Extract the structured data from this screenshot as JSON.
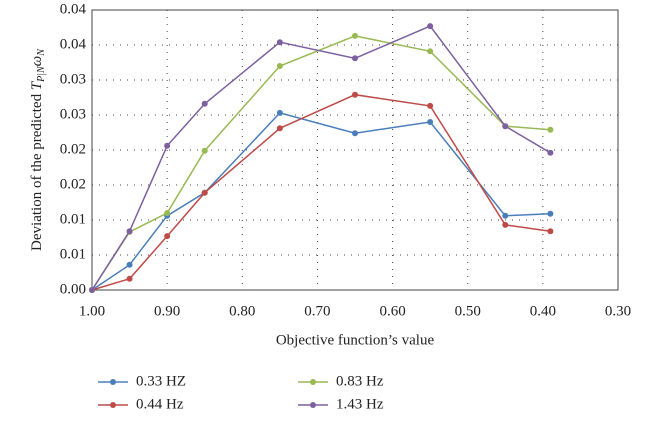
{
  "chart_data": {
    "type": "line",
    "x_label": "Objective function’s value",
    "y_label": "Deviation of the predicted",
    "y_label_symbol": [
      "T",
      "P|N",
      "ω",
      "N"
    ],
    "x": [
      1.0,
      0.95,
      0.9,
      0.85,
      0.75,
      0.65,
      0.55,
      0.45,
      0.39
    ],
    "series": [
      {
        "name": "0.33 HZ",
        "color": "#4a7ebb",
        "values": [
          0,
          0.0036,
          0.0106,
          0.0139,
          0.0253,
          0.0224,
          0.024,
          0.0106,
          0.0109
        ]
      },
      {
        "name": "0.44 Hz",
        "color": "#be4b48",
        "values": [
          0,
          0.0016,
          0.0077,
          0.0139,
          0.0231,
          0.0279,
          0.0263,
          0.0093,
          0.0084
        ]
      },
      {
        "name": "0.83 Hz",
        "color": "#98b954",
        "values": [
          0,
          0.0083,
          0.011,
          0.0199,
          0.032,
          0.0363,
          0.0341,
          0.0234,
          0.0229
        ]
      },
      {
        "name": "1.43 Hz",
        "color": "#7d60a0",
        "values": [
          0,
          0.0084,
          0.0206,
          0.0266,
          0.0354,
          0.0331,
          0.0377,
          0.0234,
          0.0196
        ]
      }
    ],
    "xlim": [
      1.0,
      0.3
    ],
    "xticks": [
      {
        "value": 1.0,
        "label": "1.00"
      },
      {
        "value": 0.9,
        "label": "0.90"
      },
      {
        "value": 0.8,
        "label": "0.80"
      },
      {
        "value": 0.7,
        "label": "0.70"
      },
      {
        "value": 0.6,
        "label": "0.60"
      },
      {
        "value": 0.5,
        "label": "0.50"
      },
      {
        "value": 0.4,
        "label": "0.40"
      },
      {
        "value": 0.3,
        "label": "0.30"
      }
    ],
    "ylim": [
      0,
      0.04
    ],
    "yticks": [
      {
        "value": 0,
        "label": "0.00"
      },
      {
        "value": 0.005,
        "label": "0.01"
      },
      0.01,
      {
        "value": 0.015,
        "label": "0.02"
      },
      0.02,
      {
        "value": 0.025,
        "label": "0.03"
      },
      0.03,
      {
        "value": 0.035,
        "label": "0.04"
      },
      0.04
    ],
    "grid": true
  }
}
